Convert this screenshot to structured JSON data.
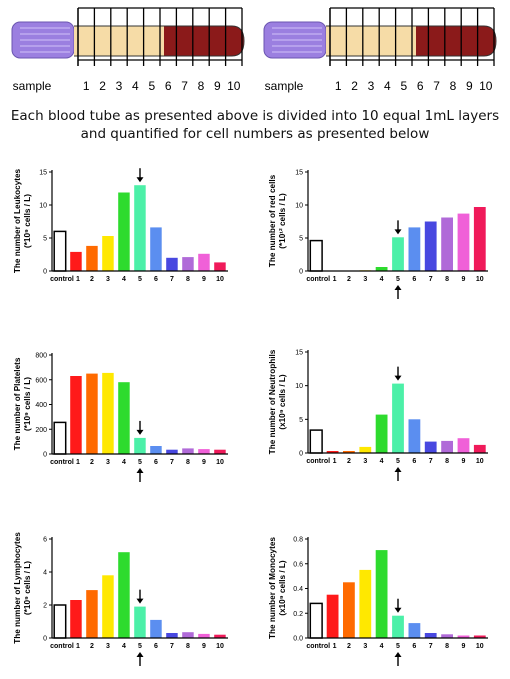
{
  "tube_diagram": {
    "sample_label": "sample",
    "layer_labels": [
      "1",
      "2",
      "3",
      "4",
      "5",
      "6",
      "7",
      "8",
      "9",
      "10"
    ],
    "colors": {
      "cap": "#9b7fe0",
      "plasma": "#f6dca7",
      "blood": "#8b1a1a"
    }
  },
  "caption": {
    "line1": "Each blood tube as presented above is divided into 10 equal 1mL layers",
    "line2": "and quantified for cell numbers as presented below"
  },
  "bar_colors": [
    "#ffffff",
    "#ff1a1a",
    "#ff6a00",
    "#ffe800",
    "#2edb2e",
    "#4cf0a8",
    "#5b8ef0",
    "#4848e0",
    "#b06ad8",
    "#f060d8",
    "#f01a5a"
  ],
  "chart_data": [
    {
      "type": "bar",
      "categories": [
        "control",
        "1",
        "2",
        "3",
        "4",
        "5",
        "6",
        "7",
        "8",
        "9",
        "10"
      ],
      "values": [
        6.0,
        2.9,
        3.8,
        5.3,
        11.9,
        13.0,
        6.6,
        2.0,
        2.1,
        2.6,
        1.3
      ],
      "ylabel_line1": "The number of Leukocytes",
      "ylabel_line2": "(*10⁹ cells / L)",
      "ylim": [
        0,
        15
      ],
      "yticks": [
        0,
        5,
        10,
        15
      ],
      "arrow_top": true,
      "arrow_bottom": false
    },
    {
      "type": "bar",
      "categories": [
        "control",
        "1",
        "2",
        "3",
        "4",
        "5",
        "6",
        "7",
        "8",
        "9",
        "10"
      ],
      "values": [
        4.6,
        0.05,
        0.05,
        0.1,
        0.6,
        5.1,
        6.6,
        7.5,
        8.1,
        8.7,
        9.7
      ],
      "ylabel_line1": "The number of  red cells",
      "ylabel_line2": "(*10¹² cells / L)",
      "ylim": [
        0,
        15
      ],
      "yticks": [
        0,
        5,
        10,
        15
      ],
      "arrow_top": true,
      "arrow_bottom": true
    },
    {
      "type": "bar",
      "categories": [
        "control",
        "1",
        "2",
        "3",
        "4",
        "5",
        "6",
        "7",
        "8",
        "9",
        "10"
      ],
      "values": [
        255,
        630,
        650,
        655,
        580,
        130,
        65,
        35,
        45,
        40,
        35
      ],
      "ylabel_line1": "The number of  Platelets",
      "ylabel_line2": "(*10⁹ cells / L)",
      "ylim": [
        0,
        800
      ],
      "yticks": [
        0,
        200,
        400,
        600,
        800
      ],
      "arrow_top": true,
      "arrow_bottom": true
    },
    {
      "type": "bar",
      "categories": [
        "control",
        "1",
        "2",
        "3",
        "4",
        "5",
        "6",
        "7",
        "8",
        "9",
        "10"
      ],
      "values": [
        3.4,
        0.3,
        0.3,
        0.9,
        5.7,
        10.3,
        5.0,
        1.7,
        1.8,
        2.2,
        1.2
      ],
      "ylabel_line1": "The number of Neutrophils",
      "ylabel_line2": "(x10⁹ cells / L)",
      "ylim": [
        0,
        15
      ],
      "yticks": [
        0,
        5,
        10,
        15
      ],
      "arrow_top": true,
      "arrow_bottom": true
    },
    {
      "type": "bar",
      "categories": [
        "control",
        "1",
        "2",
        "3",
        "4",
        "5",
        "6",
        "7",
        "8",
        "9",
        "10"
      ],
      "values": [
        2.0,
        2.3,
        2.9,
        3.8,
        5.2,
        1.9,
        1.1,
        0.3,
        0.35,
        0.25,
        0.2
      ],
      "ylabel_line1": "The number of Lymphocytes",
      "ylabel_line2": "(*10⁹ cells / L)",
      "ylim": [
        0,
        6
      ],
      "yticks": [
        0,
        2,
        4,
        6
      ],
      "arrow_top": true,
      "arrow_bottom": true
    },
    {
      "type": "bar",
      "categories": [
        "control",
        "1",
        "2",
        "3",
        "4",
        "5",
        "6",
        "7",
        "8",
        "9",
        "10"
      ],
      "values": [
        0.28,
        0.35,
        0.45,
        0.55,
        0.71,
        0.18,
        0.12,
        0.04,
        0.03,
        0.02,
        0.02
      ],
      "ylabel_line1": "The number of Monocytes",
      "ylabel_line2": "(x10⁹ cells / L)",
      "ylim": [
        0,
        0.8
      ],
      "yticks": [
        0.0,
        0.2,
        0.4,
        0.6,
        0.8
      ],
      "arrow_top": true,
      "arrow_bottom": true
    }
  ]
}
